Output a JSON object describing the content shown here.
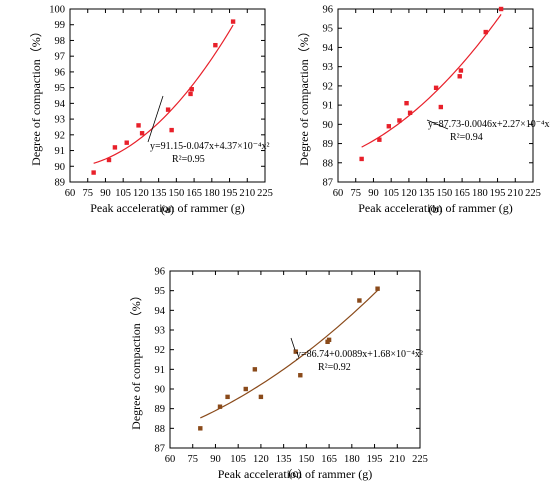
{
  "panels": [
    {
      "label": "(a)",
      "xlabel": "Peak acceleration of rammer (g)",
      "ylabel": "Degree of compaction（%）",
      "xlim": [
        60,
        225
      ],
      "ylim": [
        89,
        100
      ],
      "xticks": [
        60,
        75,
        90,
        105,
        120,
        135,
        150,
        165,
        180,
        195,
        210,
        225
      ],
      "yticks": [
        89,
        90,
        91,
        92,
        93,
        94,
        95,
        96,
        97,
        98,
        99,
        100
      ],
      "color": "#e8202a",
      "marker": "square",
      "equation": "y=91.15-0.047x+4.37×10⁻⁴x²",
      "r2": "R²=0.95",
      "fit": {
        "a": 91.15,
        "b": -0.047,
        "c": 0.000437,
        "xmin": 80,
        "xmax": 198
      },
      "points": [
        [
          80,
          89.6
        ],
        [
          93,
          90.4
        ],
        [
          98,
          91.2
        ],
        [
          108,
          91.5
        ],
        [
          118,
          92.6
        ],
        [
          121,
          92.1
        ],
        [
          143,
          93.6
        ],
        [
          146,
          92.3
        ],
        [
          162,
          94.6
        ],
        [
          163,
          94.9
        ],
        [
          183,
          97.7
        ],
        [
          198,
          99.2
        ]
      ]
    },
    {
      "label": "(b)",
      "xlabel": "Peak acceleration of rammer (g)",
      "ylabel": "Degree of compaction（%）",
      "xlim": [
        60,
        225
      ],
      "ylim": [
        87,
        96
      ],
      "xticks": [
        60,
        75,
        90,
        105,
        120,
        135,
        150,
        165,
        180,
        195,
        210,
        225
      ],
      "yticks": [
        87,
        88,
        89,
        90,
        91,
        92,
        93,
        94,
        95,
        96
      ],
      "color": "#e8202a",
      "marker": "square",
      "equation": "y=87.73-0.0046x+2.27×10⁻⁴x²",
      "r2": "R²=0.94",
      "fit": {
        "a": 87.73,
        "b": -0.0046,
        "c": 0.000227,
        "xmin": 80,
        "xmax": 198
      },
      "points": [
        [
          80,
          88.2
        ],
        [
          95,
          89.2
        ],
        [
          103,
          89.9
        ],
        [
          112,
          90.2
        ],
        [
          118,
          91.1
        ],
        [
          121,
          90.6
        ],
        [
          143,
          91.9
        ],
        [
          147,
          90.9
        ],
        [
          163,
          92.5
        ],
        [
          164,
          92.8
        ],
        [
          185,
          94.8
        ],
        [
          198,
          96.0
        ]
      ]
    },
    {
      "label": "(c)",
      "xlabel": "Peak acceleration of rammer (g)",
      "ylabel": "Degree of compaction（%）",
      "xlim": [
        60,
        225
      ],
      "ylim": [
        87,
        96
      ],
      "xticks": [
        60,
        75,
        90,
        105,
        120,
        135,
        150,
        165,
        180,
        195,
        210,
        225
      ],
      "yticks": [
        87,
        88,
        89,
        90,
        91,
        92,
        93,
        94,
        95,
        96
      ],
      "color": "#8a4a1a",
      "marker": "square",
      "equation": "y=86.74+0.0089x+1.68×10⁻⁴x²",
      "r2": "R²=0.92",
      "fit": {
        "a": 86.74,
        "b": 0.0089,
        "c": 0.000168,
        "xmin": 80,
        "xmax": 198
      },
      "points": [
        [
          80,
          88.0
        ],
        [
          93,
          89.1
        ],
        [
          98,
          89.6
        ],
        [
          110,
          90.0
        ],
        [
          116,
          91.0
        ],
        [
          120,
          89.6
        ],
        [
          143,
          91.9
        ],
        [
          146,
          90.7
        ],
        [
          164,
          92.4
        ],
        [
          165,
          92.5
        ],
        [
          185,
          94.5
        ],
        [
          197,
          95.1
        ]
      ]
    }
  ],
  "chart_data": [
    {
      "type": "scatter",
      "title": "(a)",
      "xlabel": "Peak acceleration of rammer (g)",
      "ylabel": "Degree of compaction（%）",
      "xlim": [
        60,
        225
      ],
      "ylim": [
        89,
        100
      ],
      "grid": false,
      "series": [
        {
          "name": "",
          "x": [
            80,
            93,
            98,
            108,
            118,
            121,
            143,
            146,
            162,
            163,
            183,
            198
          ],
          "y": [
            89.6,
            90.4,
            91.2,
            91.5,
            92.6,
            92.1,
            93.6,
            92.3,
            94.6,
            94.9,
            97.7,
            99.2
          ]
        }
      ],
      "annotations": [
        "y=91.15-0.047x+4.37×10⁻⁴x²",
        "R²=0.95"
      ]
    },
    {
      "type": "scatter",
      "title": "(b)",
      "xlabel": "Peak acceleration of rammer (g)",
      "ylabel": "Degree of compaction（%）",
      "xlim": [
        60,
        225
      ],
      "ylim": [
        87,
        96
      ],
      "grid": false,
      "series": [
        {
          "name": "",
          "x": [
            80,
            95,
            103,
            112,
            118,
            121,
            143,
            147,
            163,
            164,
            185,
            198
          ],
          "y": [
            88.2,
            89.2,
            89.9,
            90.2,
            91.1,
            90.6,
            91.9,
            90.9,
            92.5,
            92.8,
            94.8,
            96.0
          ]
        }
      ],
      "annotations": [
        "y=87.73-0.0046x+2.27×10⁻⁴x²",
        "R²=0.94"
      ]
    },
    {
      "type": "scatter",
      "title": "(c)",
      "xlabel": "Peak acceleration of rammer (g)",
      "ylabel": "Degree of compaction（%）",
      "xlim": [
        60,
        225
      ],
      "ylim": [
        87,
        96
      ],
      "grid": false,
      "series": [
        {
          "name": "",
          "x": [
            80,
            93,
            98,
            110,
            116,
            120,
            143,
            146,
            164,
            165,
            185,
            197
          ],
          "y": [
            88.0,
            89.1,
            89.6,
            90.0,
            91.0,
            89.6,
            91.9,
            90.7,
            92.4,
            92.5,
            94.5,
            95.1
          ]
        }
      ],
      "annotations": [
        "y=86.74+0.0089x+1.68×10⁻⁴x²",
        "R²=0.92"
      ]
    }
  ]
}
